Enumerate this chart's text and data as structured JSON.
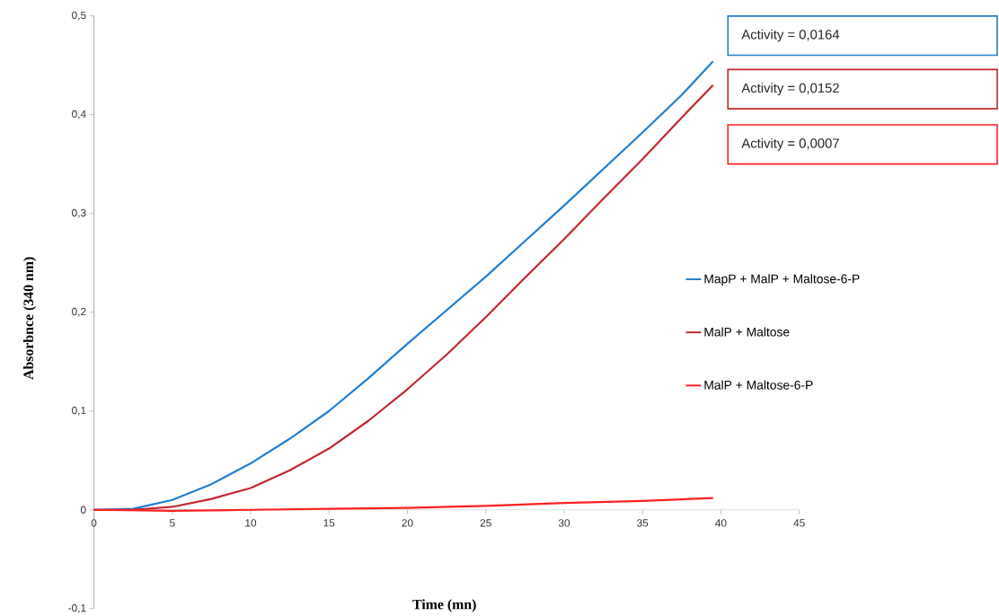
{
  "chart_data": {
    "type": "line",
    "xlabel": "Time (mn)",
    "ylabel": "Absorbnce (340 nm)",
    "xlim": [
      0,
      45
    ],
    "ylim": [
      -0.1,
      0.5
    ],
    "xticks": [
      0,
      5,
      10,
      15,
      20,
      25,
      30,
      35,
      40,
      45
    ],
    "yticks": [
      {
        "value": -0.1,
        "label": "-0,1"
      },
      0,
      {
        "value": 0.1,
        "label": "0,1"
      },
      {
        "value": 0.2,
        "label": "0,2"
      },
      {
        "value": 0.3,
        "label": "0,3"
      },
      {
        "value": 0.4,
        "label": "0,4"
      },
      {
        "value": 0.5,
        "label": "0,5"
      }
    ],
    "legend": "right",
    "annotations": [
      "Activity = 0,0164",
      "Activity = 0,0152",
      "Activity = 0,0007"
    ],
    "series": [
      {
        "name": "MapP + MalP + Maltose-6-P",
        "color": "#1f7fd0",
        "x": [
          0,
          2.5,
          5,
          7.5,
          10,
          12.5,
          15,
          17.5,
          20,
          22.5,
          25,
          27.5,
          30,
          32.5,
          35,
          37.5,
          39.5
        ],
        "values": [
          0,
          0.001,
          0.01,
          0.026,
          0.047,
          0.072,
          0.1,
          0.133,
          0.168,
          0.202,
          0.236,
          0.272,
          0.308,
          0.345,
          0.382,
          0.42,
          0.454
        ]
      },
      {
        "name": "MalP + Maltose",
        "color": "#c0282d",
        "x": [
          0,
          2.5,
          5,
          7.5,
          10,
          12.5,
          15,
          17.5,
          20,
          22.5,
          25,
          27.5,
          30,
          32.5,
          35,
          37.5,
          39.5
        ],
        "values": [
          0,
          0,
          0.003,
          0.011,
          0.022,
          0.04,
          0.062,
          0.09,
          0.122,
          0.157,
          0.195,
          0.235,
          0.274,
          0.315,
          0.355,
          0.397,
          0.43
        ]
      },
      {
        "name": "MalP + Maltose-6-P",
        "color": "#ff2020",
        "x": [
          0,
          5,
          10,
          15,
          20,
          25,
          30,
          35,
          39.5
        ],
        "values": [
          0,
          -0.001,
          0,
          0.001,
          0.002,
          0.004,
          0.007,
          0.009,
          0.012
        ]
      }
    ]
  }
}
